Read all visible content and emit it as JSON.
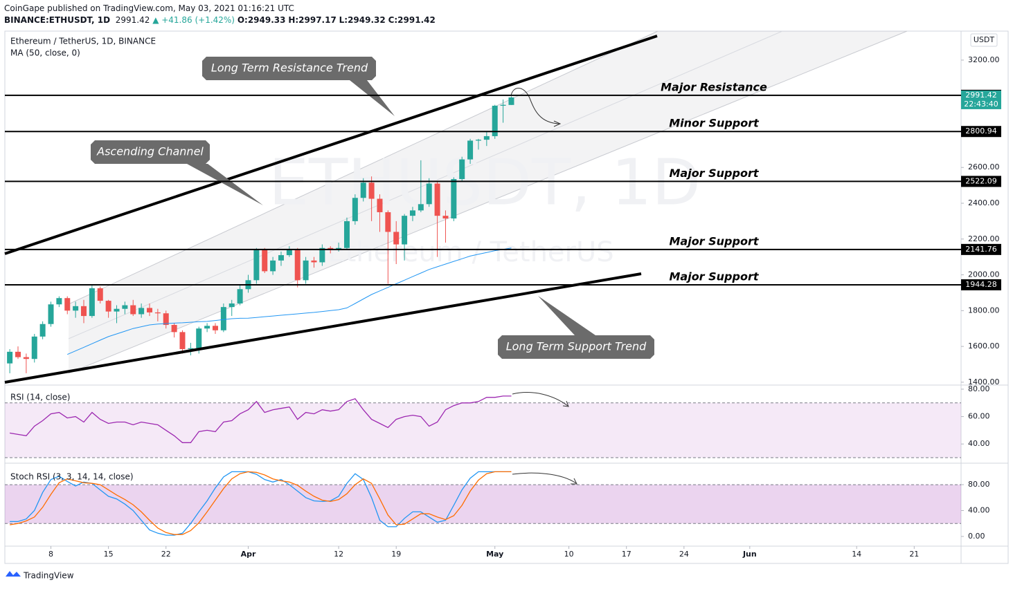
{
  "header": {
    "published": "CoinGape published on TradingView.com, May 03, 2021 01:16:21 UTC",
    "symbol": "BINANCE:ETHUSDT, 1D",
    "last": "2991.42",
    "change": "▲ +41.86 (+1.42%)",
    "open": "O:2949.33",
    "high": "H:2997.17",
    "low": "L:2949.32",
    "close": "C:2991.42"
  },
  "footer": "TradingView",
  "chart_data": [
    {
      "type": "candlestick",
      "title": "Ethereum / TetherUS, 1D, BINANCE",
      "watermark": "ETHUSDT, 1D",
      "watermark_sub": "Ethereum / TetherUS",
      "y_axis_label": "USDT",
      "categories": [
        null,
        null,
        null,
        null,
        null,
        null,
        null,
        null,
        null,
        null,
        null,
        null,
        null,
        null,
        null,
        null,
        null,
        null,
        null,
        null,
        null,
        null,
        null,
        null,
        null,
        null,
        null,
        null,
        null,
        null,
        null,
        null,
        null,
        null,
        null,
        null,
        null,
        null,
        null,
        null,
        null,
        null,
        null,
        null,
        null,
        null,
        null,
        null,
        null,
        null,
        null,
        null,
        null,
        null,
        null,
        null,
        null,
        null,
        null,
        null,
        null,
        null
      ],
      "open": [
        1505,
        1570,
        1540,
        1530,
        1655,
        1725,
        1835,
        1870,
        1800,
        1825,
        1770,
        1925,
        1855,
        1795,
        1810,
        1830,
        1780,
        1815,
        1790,
        1785,
        1720,
        1680,
        1585,
        1590,
        1700,
        1715,
        1690,
        1820,
        1840,
        1920,
        1970,
        2140,
        2020,
        2080,
        2110,
        2140,
        1970,
        2080,
        2070,
        2150,
        2140,
        2150,
        2300,
        2430,
        2515,
        2425,
        2350,
        2240,
        2170,
        2330,
        2360,
        2395,
        2510,
        2330,
        2315,
        2535,
        2645,
        2750,
        2755,
        2775,
        2945,
        2949.33
      ],
      "high": [
        1585,
        1600,
        1560,
        1670,
        1740,
        1850,
        1880,
        1880,
        1850,
        1860,
        1940,
        1935,
        1860,
        1830,
        1850,
        1860,
        1840,
        1840,
        1810,
        1800,
        1730,
        1690,
        1620,
        1710,
        1730,
        1730,
        1840,
        1860,
        1945,
        2000,
        2150,
        2150,
        2100,
        2130,
        2160,
        2150,
        2100,
        2100,
        2170,
        2160,
        2180,
        2320,
        2450,
        2540,
        2550,
        2450,
        2360,
        2300,
        2340,
        2380,
        2640,
        2540,
        2520,
        2360,
        2545,
        2660,
        2760,
        2760,
        2800,
        2950,
        2980,
        2997.17
      ],
      "low": [
        1450,
        1530,
        1450,
        1510,
        1640,
        1710,
        1820,
        1780,
        1760,
        1730,
        1760,
        1840,
        1760,
        1730,
        1780,
        1770,
        1760,
        1770,
        1740,
        1700,
        1650,
        1560,
        1550,
        1560,
        1680,
        1670,
        1680,
        1770,
        1830,
        1900,
        1950,
        2010,
        2000,
        2050,
        2100,
        1930,
        1950,
        2040,
        2050,
        2120,
        2130,
        2140,
        2280,
        2410,
        2300,
        2240,
        1950,
        2060,
        2080,
        2300,
        2350,
        2380,
        2100,
        2180,
        2300,
        2520,
        2620,
        2700,
        2720,
        2760,
        2850,
        2949.32
      ],
      "close": [
        1570,
        1540,
        1530,
        1655,
        1725,
        1835,
        1870,
        1800,
        1825,
        1770,
        1925,
        1855,
        1795,
        1810,
        1830,
        1780,
        1815,
        1790,
        1785,
        1720,
        1680,
        1585,
        1590,
        1700,
        1715,
        1690,
        1820,
        1840,
        1920,
        1970,
        2140,
        2020,
        2080,
        2110,
        2140,
        1970,
        2080,
        2070,
        2150,
        2140,
        2150,
        2300,
        2430,
        2515,
        2425,
        2350,
        2240,
        2170,
        2330,
        2360,
        2395,
        2510,
        2330,
        2315,
        2535,
        2645,
        2750,
        2755,
        2775,
        2945,
        2950,
        2991.42
      ],
      "up_color": "#26a69a",
      "down_color": "#ef5350",
      "countdown": "22:43:40",
      "overlays": [
        {
          "name": "MA (50, close, 0)",
          "color": "#2196f3",
          "values": [
            null,
            null,
            null,
            null,
            null,
            null,
            null,
            1555,
            1575,
            1595,
            1615,
            1635,
            1655,
            1670,
            1685,
            1700,
            1710,
            1720,
            1725,
            1728,
            1730,
            1732,
            1735,
            1738,
            1740,
            1745,
            1750,
            1755,
            1757,
            1758,
            1762,
            1766,
            1770,
            1774,
            1778,
            1782,
            1786,
            1790,
            1795,
            1800,
            1805,
            1815,
            1840,
            1865,
            1890,
            1910,
            1930,
            1950,
            1970,
            1990,
            2010,
            2030,
            2045,
            2060,
            2075,
            2090,
            2105,
            2115,
            2125,
            2135,
            2142,
            2150
          ]
        }
      ],
      "levels": [
        {
          "value": 3003.28,
          "name": "Major Resistance"
        },
        {
          "value": 2800.94,
          "name": "Minor Support"
        },
        {
          "value": 2522.09,
          "name": "Major Support"
        },
        {
          "value": 2141.76,
          "name": "Major Support"
        },
        {
          "value": 1944.28,
          "name": "Major Support"
        }
      ],
      "annotations": [
        "Long Term Resistance Trend",
        "Ascending Channel",
        "Long Term Support Trend"
      ],
      "ylim": [
        1384,
        3362
      ],
      "yticks": [
        {
          "value": 3200,
          "label": "3200.00"
        },
        {
          "value": 2600,
          "label": "2600.00"
        },
        {
          "value": 2400,
          "label": "2400.00"
        },
        {
          "value": 2200,
          "label": "2200.00"
        },
        {
          "value": 2000,
          "label": "2000.00"
        },
        {
          "value": 1800,
          "label": "1800.00"
        },
        {
          "value": 1600,
          "label": "1600.00"
        },
        {
          "value": 1400,
          "label": "1400.00"
        }
      ],
      "xlim": [
        -0.6,
        115.7
      ],
      "xticks": [
        {
          "value": 5,
          "label": "8"
        },
        {
          "value": 12,
          "label": "15"
        },
        {
          "value": 19,
          "label": "22"
        },
        {
          "value": 29,
          "label": "Apr"
        },
        {
          "value": 40,
          "label": "12"
        },
        {
          "value": 47,
          "label": "19"
        },
        {
          "value": 59,
          "label": "May"
        },
        {
          "value": 68,
          "label": "10"
        },
        {
          "value": 75,
          "label": "17"
        },
        {
          "value": 82,
          "label": "24"
        },
        {
          "value": 90,
          "label": "Jun"
        },
        {
          "value": 103,
          "label": "14"
        },
        {
          "value": 110,
          "label": "21"
        }
      ]
    },
    {
      "type": "line",
      "title": "RSI (14, close)",
      "band": [
        30,
        70
      ],
      "band_color": "#9c27b0",
      "series": [
        {
          "color": "#9c27b0",
          "values": [
            48,
            47,
            46,
            53,
            57,
            62,
            63,
            59,
            60,
            56,
            63,
            58,
            55,
            56,
            56,
            54,
            56,
            55,
            54,
            50,
            46,
            41,
            41,
            49,
            50,
            49,
            56,
            57,
            62,
            65,
            71,
            63,
            65,
            66,
            67,
            58,
            63,
            62,
            65,
            64,
            65,
            71,
            73,
            65,
            58,
            55,
            52,
            58,
            60,
            61,
            60,
            53,
            56,
            65,
            68,
            70,
            70,
            71,
            74,
            74,
            75,
            75
          ]
        }
      ],
      "ylim": [
        27,
        83
      ],
      "yticks": [
        {
          "value": 80,
          "label": "80.00"
        },
        {
          "value": 60,
          "label": "60.00"
        },
        {
          "value": 40,
          "label": "40.00"
        }
      ]
    },
    {
      "type": "line",
      "title": "Stoch RSI (3, 3, 14, 14, close)",
      "band": [
        20,
        80
      ],
      "band_color": "#9c27b0",
      "series": [
        {
          "color": "#2196f3",
          "values": [
            23,
            23,
            27,
            40,
            68,
            88,
            93,
            85,
            78,
            84,
            82,
            72,
            62,
            58,
            50,
            40,
            25,
            10,
            5,
            2,
            2,
            5,
            20,
            38,
            55,
            75,
            92,
            100,
            100,
            100,
            96,
            88,
            84,
            88,
            80,
            70,
            60,
            55,
            54,
            55,
            62,
            82,
            97,
            88,
            60,
            25,
            15,
            15,
            28,
            38,
            38,
            30,
            22,
            25,
            48,
            72,
            90,
            100,
            100,
            100,
            100,
            100
          ]
        },
        {
          "color": "#ff6d00",
          "values": [
            18,
            20,
            24,
            30,
            45,
            65,
            83,
            89,
            86,
            83,
            82,
            80,
            72,
            64,
            57,
            49,
            38,
            25,
            13,
            6,
            3,
            3,
            9,
            21,
            38,
            56,
            74,
            89,
            97,
            100,
            99,
            95,
            89,
            86,
            84,
            79,
            70,
            62,
            56,
            54,
            57,
            66,
            80,
            89,
            82,
            58,
            33,
            18,
            19,
            27,
            35,
            35,
            30,
            26,
            32,
            48,
            70,
            87,
            97,
            100,
            100,
            100
          ]
        }
      ],
      "ylim": [
        -15,
        110
      ],
      "yticks": [
        {
          "value": 80,
          "label": "80.00"
        },
        {
          "value": 40,
          "label": "40.00"
        },
        {
          "value": 0,
          "label": "0.00"
        }
      ]
    }
  ]
}
